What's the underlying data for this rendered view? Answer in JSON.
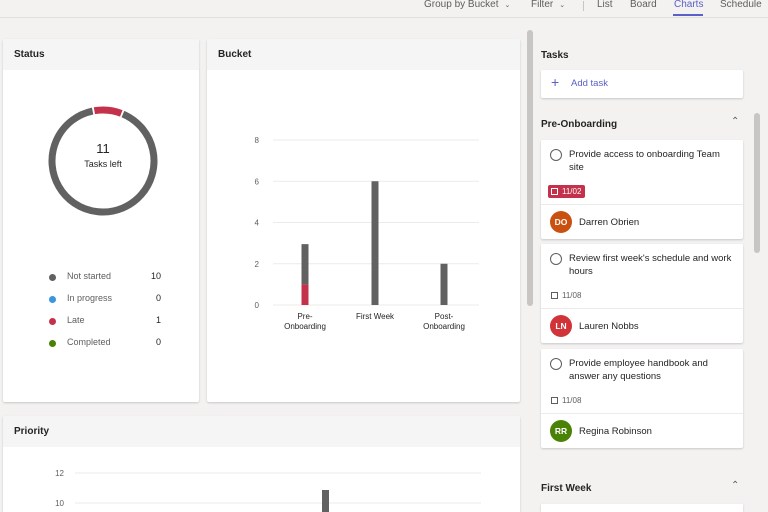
{
  "topbar": {
    "group_by": "Group by Bucket",
    "filter": "Filter",
    "views": [
      "List",
      "Board",
      "Charts",
      "Schedule"
    ],
    "active_view": "Charts"
  },
  "status": {
    "title": "Status",
    "tasks_left_count": "11",
    "tasks_left_label": "Tasks left",
    "legend": [
      {
        "label": "Not started",
        "value": "10",
        "color": "#616161"
      },
      {
        "label": "In progress",
        "value": "0",
        "color": "#3a96dd"
      },
      {
        "label": "Late",
        "value": "1",
        "color": "#c4314b"
      },
      {
        "label": "Completed",
        "value": "0",
        "color": "#498205"
      }
    ]
  },
  "bucket": {
    "title": "Bucket"
  },
  "priority": {
    "title": "Priority"
  },
  "chart_data": [
    {
      "type": "pie",
      "title": "Status",
      "categories": [
        "Not started",
        "In progress",
        "Late",
        "Completed"
      ],
      "values": [
        10,
        0,
        1,
        0
      ],
      "colors": [
        "#616161",
        "#3a96dd",
        "#c4314b",
        "#498205"
      ]
    },
    {
      "type": "bar",
      "title": "Bucket",
      "categories": [
        "Pre-Onboarding",
        "First Week",
        "Post-Onboarding"
      ],
      "series": [
        {
          "values": [
            2,
            6,
            2
          ],
          "color": "#616161"
        },
        {
          "values": [
            1,
            0,
            0
          ],
          "color": "#c4314b"
        }
      ],
      "ylim": [
        0,
        8
      ],
      "yticks": [
        "0",
        "2",
        "4",
        "6",
        "8"
      ],
      "grid": true
    },
    {
      "type": "bar",
      "title": "Priority",
      "yticks": [
        "10",
        "12"
      ],
      "grid": true
    }
  ],
  "tasks_panel": {
    "title": "Tasks",
    "add_task_label": "Add task",
    "sections": [
      {
        "name": "Pre-Onboarding",
        "tasks": [
          {
            "title": "Provide access to onboarding Team site",
            "date": "11/02",
            "late": true,
            "assignee": "Darren Obrien",
            "initials": "DO",
            "avatar_color": "#ca5010"
          },
          {
            "title": "Review first week's schedule and work hours",
            "date": "11/08",
            "late": false,
            "assignee": "Lauren Nobbs",
            "initials": "LN",
            "avatar_color": "#d13438"
          },
          {
            "title": "Provide employee handbook and answer any questions",
            "date": "11/08",
            "late": false,
            "assignee": "Regina Robinson",
            "initials": "RR",
            "avatar_color": "#498205"
          }
        ]
      },
      {
        "name": "First Week",
        "tasks": []
      }
    ]
  }
}
